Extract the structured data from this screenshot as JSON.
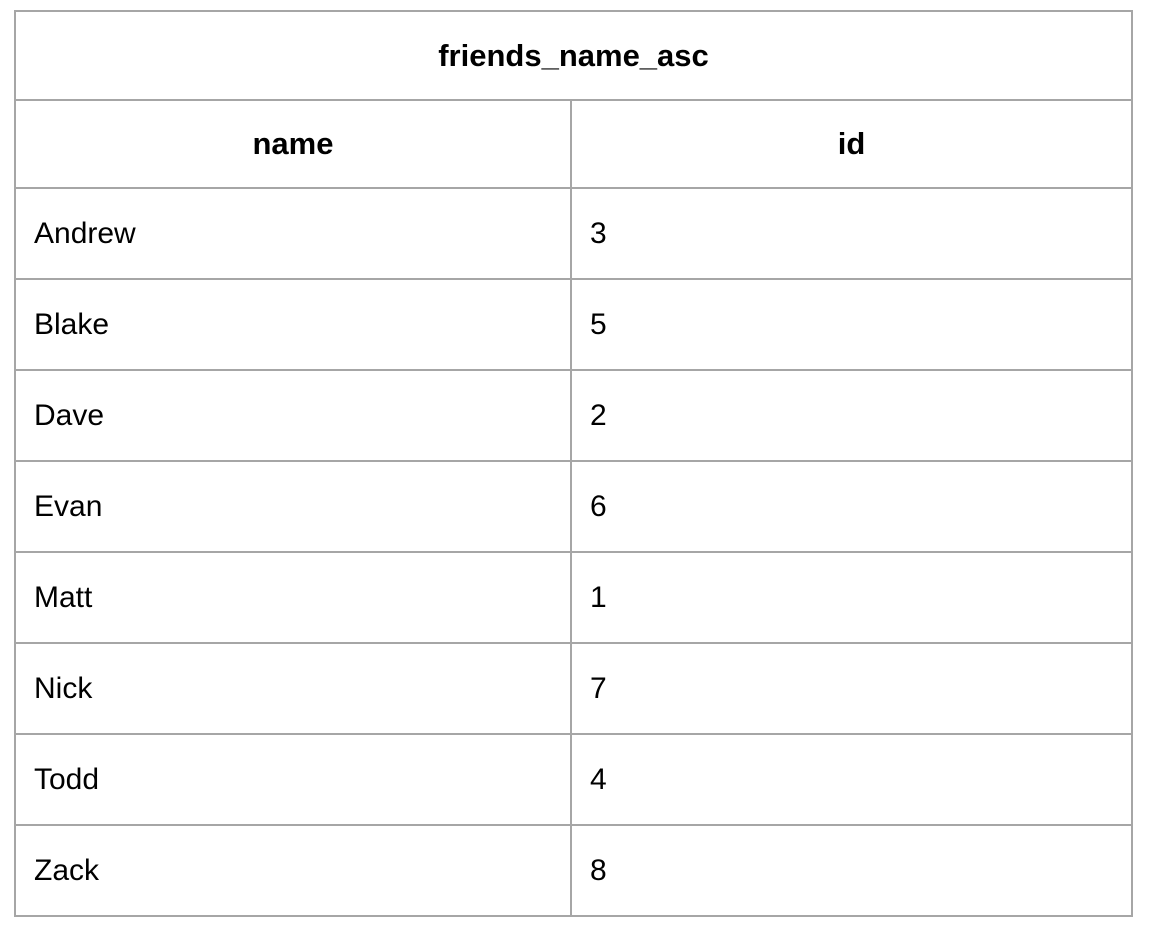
{
  "table": {
    "title": "friends_name_asc",
    "columns": [
      "name",
      "id"
    ],
    "rows": [
      {
        "name": "Andrew",
        "id": "3"
      },
      {
        "name": "Blake",
        "id": "5"
      },
      {
        "name": "Dave",
        "id": "2"
      },
      {
        "name": "Evan",
        "id": "6"
      },
      {
        "name": "Matt",
        "id": "1"
      },
      {
        "name": "Nick",
        "id": "7"
      },
      {
        "name": "Todd",
        "id": "4"
      },
      {
        "name": "Zack",
        "id": "8"
      }
    ]
  },
  "colors": {
    "border": "#a6a6a6",
    "text": "#000000",
    "background": "#ffffff"
  },
  "chart_data": {
    "type": "table",
    "title": "friends_name_asc",
    "columns": [
      "name",
      "id"
    ],
    "rows": [
      [
        "Andrew",
        3
      ],
      [
        "Blake",
        5
      ],
      [
        "Dave",
        2
      ],
      [
        "Evan",
        6
      ],
      [
        "Matt",
        1
      ],
      [
        "Nick",
        7
      ],
      [
        "Todd",
        4
      ],
      [
        "Zack",
        8
      ]
    ],
    "layout_hints": {
      "title_row": "merged across both columns, bold, centered",
      "header_row": "bold, centered",
      "data_rows": "left-aligned",
      "grid": true
    }
  }
}
